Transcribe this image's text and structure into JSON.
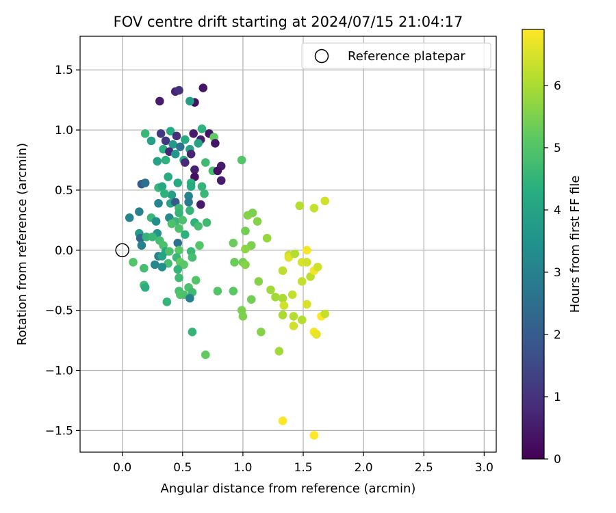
{
  "chart_data": {
    "type": "scatter",
    "title": "FOV centre drift starting at 2024/07/15 21:04:17",
    "xlabel": "Angular distance from reference (arcmin)",
    "ylabel": "Rotation from reference (arcmin)",
    "xlim": [
      -0.35,
      3.1
    ],
    "ylim": [
      -1.68,
      1.78
    ],
    "xticks": [
      0.0,
      0.5,
      1.0,
      1.5,
      2.0,
      2.5,
      3.0
    ],
    "xtick_labels": [
      "0.0",
      "0.5",
      "1.0",
      "1.5",
      "2.0",
      "2.5",
      "3.0"
    ],
    "yticks": [
      1.5,
      1.0,
      0.5,
      0.0,
      -0.5,
      -1.0,
      -1.5
    ],
    "ytick_labels": [
      "1.5",
      "1.0",
      "0.5",
      "0.0",
      "−0.5",
      "−1.0",
      "−1.5"
    ],
    "grid": true,
    "legend": {
      "placement": "upper right",
      "entries": [
        "Reference platepar"
      ]
    },
    "reference_point": {
      "x": 0.0,
      "y": 0.0,
      "name": "Reference platepar",
      "marker": "open circle"
    },
    "colorbar": {
      "label": "Hours from first FF file",
      "colormap": "viridis",
      "range": [
        0,
        6.9
      ],
      "ticks": [
        0,
        1,
        2,
        3,
        4,
        5,
        6
      ],
      "tick_labels": [
        "0",
        "1",
        "2",
        "3",
        "4",
        "5",
        "6"
      ]
    },
    "points": [
      {
        "x": 0.44,
        "y": 1.32,
        "h": 0.7
      },
      {
        "x": 0.47,
        "y": 1.33,
        "h": 0.9
      },
      {
        "x": 0.67,
        "y": 1.35,
        "h": 0.4
      },
      {
        "x": 0.31,
        "y": 1.24,
        "h": 0.5
      },
      {
        "x": 0.6,
        "y": 1.23,
        "h": 0.3
      },
      {
        "x": 0.56,
        "y": 1.24,
        "h": 3.8
      },
      {
        "x": 0.66,
        "y": 1.01,
        "h": 4.4
      },
      {
        "x": 0.19,
        "y": 0.97,
        "h": 4.6
      },
      {
        "x": 0.32,
        "y": 0.97,
        "h": 1.2
      },
      {
        "x": 0.4,
        "y": 0.99,
        "h": 4.2
      },
      {
        "x": 0.45,
        "y": 0.95,
        "h": 0.9
      },
      {
        "x": 0.59,
        "y": 0.97,
        "h": 0.5
      },
      {
        "x": 0.72,
        "y": 0.97,
        "h": 0.4
      },
      {
        "x": 0.76,
        "y": 0.94,
        "h": 5.2
      },
      {
        "x": 0.24,
        "y": 0.91,
        "h": 3.9
      },
      {
        "x": 0.36,
        "y": 0.91,
        "h": 1.1
      },
      {
        "x": 0.52,
        "y": 0.92,
        "h": 4.2
      },
      {
        "x": 0.65,
        "y": 0.92,
        "h": 0.6
      },
      {
        "x": 0.77,
        "y": 0.89,
        "h": 0.4
      },
      {
        "x": 0.63,
        "y": 0.89,
        "h": 4.0
      },
      {
        "x": 0.42,
        "y": 0.88,
        "h": 3.7
      },
      {
        "x": 0.48,
        "y": 0.86,
        "h": 2.6
      },
      {
        "x": 0.56,
        "y": 0.84,
        "h": 4.0
      },
      {
        "x": 0.34,
        "y": 0.84,
        "h": 4.3
      },
      {
        "x": 0.39,
        "y": 0.82,
        "h": 0.7
      },
      {
        "x": 0.44,
        "y": 0.8,
        "h": 3.6
      },
      {
        "x": 0.57,
        "y": 0.8,
        "h": 0.7
      },
      {
        "x": 0.29,
        "y": 0.74,
        "h": 4.0
      },
      {
        "x": 0.36,
        "y": 0.75,
        "h": 4.4
      },
      {
        "x": 0.51,
        "y": 0.75,
        "h": 4.3
      },
      {
        "x": 0.52,
        "y": 0.73,
        "h": 0.8
      },
      {
        "x": 0.69,
        "y": 0.73,
        "h": 4.7
      },
      {
        "x": 0.99,
        "y": 0.75,
        "h": 5.0
      },
      {
        "x": 0.82,
        "y": 0.7,
        "h": 0.5
      },
      {
        "x": 0.6,
        "y": 0.67,
        "h": 0.6
      },
      {
        "x": 0.75,
        "y": 0.66,
        "h": 4.8
      },
      {
        "x": 0.79,
        "y": 0.66,
        "h": 0.3
      },
      {
        "x": 0.38,
        "y": 0.61,
        "h": 4.2
      },
      {
        "x": 0.6,
        "y": 0.61,
        "h": 0.3
      },
      {
        "x": 0.82,
        "y": 0.58,
        "h": 0.5
      },
      {
        "x": 0.16,
        "y": 0.55,
        "h": 2.0
      },
      {
        "x": 0.19,
        "y": 0.56,
        "h": 2.5
      },
      {
        "x": 0.46,
        "y": 0.56,
        "h": 4.2
      },
      {
        "x": 0.57,
        "y": 0.56,
        "h": 4.4
      },
      {
        "x": 0.3,
        "y": 0.52,
        "h": 4.6
      },
      {
        "x": 0.33,
        "y": 0.53,
        "h": 4.1
      },
      {
        "x": 0.57,
        "y": 0.53,
        "h": 4.2
      },
      {
        "x": 0.66,
        "y": 0.53,
        "h": 4.5
      },
      {
        "x": 0.41,
        "y": 0.46,
        "h": 3.9
      },
      {
        "x": 0.55,
        "y": 0.45,
        "h": 3.0
      },
      {
        "x": 0.35,
        "y": 0.47,
        "h": 4.4
      },
      {
        "x": 0.68,
        "y": 0.47,
        "h": 4.6
      },
      {
        "x": 0.3,
        "y": 0.39,
        "h": 3.1
      },
      {
        "x": 0.4,
        "y": 0.39,
        "h": 4.0
      },
      {
        "x": 0.44,
        "y": 0.4,
        "h": 2.0
      },
      {
        "x": 0.55,
        "y": 0.4,
        "h": 2.8
      },
      {
        "x": 0.65,
        "y": 0.38,
        "h": 0.5
      },
      {
        "x": 0.14,
        "y": 0.32,
        "h": 3.0
      },
      {
        "x": 0.47,
        "y": 0.35,
        "h": 4.7
      },
      {
        "x": 0.56,
        "y": 0.33,
        "h": 4.5
      },
      {
        "x": 0.47,
        "y": 0.31,
        "h": 4.5
      },
      {
        "x": 0.06,
        "y": 0.27,
        "h": 3.1
      },
      {
        "x": 0.24,
        "y": 0.27,
        "h": 4.6
      },
      {
        "x": 0.39,
        "y": 0.27,
        "h": 3.2
      },
      {
        "x": 0.44,
        "y": 0.24,
        "h": 4.6
      },
      {
        "x": 0.5,
        "y": 0.25,
        "h": 4.9
      },
      {
        "x": 0.28,
        "y": 0.24,
        "h": 3.4
      },
      {
        "x": 0.41,
        "y": 0.22,
        "h": 4.9
      },
      {
        "x": 0.6,
        "y": 0.23,
        "h": 4.4
      },
      {
        "x": 0.7,
        "y": 0.23,
        "h": 4.7
      },
      {
        "x": 0.63,
        "y": 0.2,
        "h": 4.8
      },
      {
        "x": 0.47,
        "y": 0.18,
        "h": 4.9
      },
      {
        "x": 0.14,
        "y": 0.14,
        "h": 3.8
      },
      {
        "x": 0.29,
        "y": 0.14,
        "h": 3.6
      },
      {
        "x": 0.52,
        "y": 0.13,
        "h": 4.4
      },
      {
        "x": 0.15,
        "y": 0.1,
        "h": 2.3
      },
      {
        "x": 0.2,
        "y": 0.11,
        "h": 4.5
      },
      {
        "x": 0.25,
        "y": 0.11,
        "h": 4.6
      },
      {
        "x": 0.31,
        "y": 0.08,
        "h": 4.8
      },
      {
        "x": 0.34,
        "y": 0.04,
        "h": 4.9
      },
      {
        "x": 0.46,
        "y": 0.06,
        "h": 2.6
      },
      {
        "x": 0.16,
        "y": 0.04,
        "h": 3.0
      },
      {
        "x": 0.64,
        "y": 0.04,
        "h": 5.0
      },
      {
        "x": 0.36,
        "y": -0.01,
        "h": 4.2
      },
      {
        "x": 0.39,
        "y": -0.01,
        "h": 4.9
      },
      {
        "x": 0.47,
        "y": 0.0,
        "h": 5.1
      },
      {
        "x": 0.57,
        "y": -0.01,
        "h": 4.6
      },
      {
        "x": 0.3,
        "y": -0.05,
        "h": 3.0
      },
      {
        "x": 0.33,
        "y": -0.05,
        "h": 4.0
      },
      {
        "x": 0.45,
        "y": -0.06,
        "h": 4.6
      },
      {
        "x": 0.58,
        "y": -0.06,
        "h": 4.8
      },
      {
        "x": 0.09,
        "y": -0.1,
        "h": 5.0
      },
      {
        "x": 0.48,
        "y": -0.1,
        "h": 5.2
      },
      {
        "x": 0.51,
        "y": -0.12,
        "h": 5.1
      },
      {
        "x": 0.27,
        "y": -0.12,
        "h": 3.2
      },
      {
        "x": 0.38,
        "y": -0.11,
        "h": 4.8
      },
      {
        "x": 0.33,
        "y": -0.14,
        "h": 3.4
      },
      {
        "x": 0.18,
        "y": -0.15,
        "h": 4.8
      },
      {
        "x": 0.46,
        "y": -0.16,
        "h": 4.5
      },
      {
        "x": 0.47,
        "y": -0.23,
        "h": 4.7
      },
      {
        "x": 0.61,
        "y": -0.25,
        "h": 5.0
      },
      {
        "x": 0.18,
        "y": -0.29,
        "h": 4.8
      },
      {
        "x": 0.19,
        "y": -0.31,
        "h": 4.3
      },
      {
        "x": 0.55,
        "y": -0.31,
        "h": 4.9
      },
      {
        "x": 0.47,
        "y": -0.34,
        "h": 4.8
      },
      {
        "x": 0.58,
        "y": -0.35,
        "h": 4.7
      },
      {
        "x": 0.48,
        "y": -0.37,
        "h": 5.0
      },
      {
        "x": 0.51,
        "y": -0.37,
        "h": 4.9
      },
      {
        "x": 0.56,
        "y": -0.4,
        "h": 3.0
      },
      {
        "x": 0.37,
        "y": -0.43,
        "h": 4.5
      },
      {
        "x": 0.79,
        "y": -0.34,
        "h": 5.0
      },
      {
        "x": 0.92,
        "y": -0.34,
        "h": 5.1
      },
      {
        "x": 0.58,
        "y": -0.68,
        "h": 4.5
      },
      {
        "x": 0.69,
        "y": -0.87,
        "h": 5.2
      },
      {
        "x": 0.92,
        "y": 0.06,
        "h": 5.3
      },
      {
        "x": 1.02,
        "y": 0.16,
        "h": 5.4
      },
      {
        "x": 1.04,
        "y": 0.29,
        "h": 5.6
      },
      {
        "x": 1.08,
        "y": 0.31,
        "h": 5.5
      },
      {
        "x": 1.12,
        "y": 0.24,
        "h": 5.6
      },
      {
        "x": 1.07,
        "y": 0.04,
        "h": 5.5
      },
      {
        "x": 1.02,
        "y": 0.01,
        "h": 5.7
      },
      {
        "x": 1.2,
        "y": 0.1,
        "h": 5.8
      },
      {
        "x": 0.93,
        "y": -0.1,
        "h": 5.3
      },
      {
        "x": 1.0,
        "y": -0.1,
        "h": 5.4
      },
      {
        "x": 1.02,
        "y": -0.12,
        "h": 5.6
      },
      {
        "x": 1.13,
        "y": -0.26,
        "h": 5.6
      },
      {
        "x": 1.23,
        "y": -0.33,
        "h": 5.9
      },
      {
        "x": 1.07,
        "y": -0.41,
        "h": 5.4
      },
      {
        "x": 0.99,
        "y": -0.5,
        "h": 5.5
      },
      {
        "x": 1.0,
        "y": -0.55,
        "h": 5.5
      },
      {
        "x": 1.27,
        "y": -0.39,
        "h": 5.9
      },
      {
        "x": 1.33,
        "y": -0.4,
        "h": 6.0
      },
      {
        "x": 1.34,
        "y": -0.46,
        "h": 6.4
      },
      {
        "x": 1.41,
        "y": -0.37,
        "h": 6.3
      },
      {
        "x": 1.33,
        "y": -0.54,
        "h": 6.0
      },
      {
        "x": 1.42,
        "y": -0.55,
        "h": 6.1
      },
      {
        "x": 1.42,
        "y": -0.63,
        "h": 6.4
      },
      {
        "x": 1.49,
        "y": -0.58,
        "h": 6.1
      },
      {
        "x": 1.53,
        "y": -0.45,
        "h": 6.5
      },
      {
        "x": 1.15,
        "y": -0.68,
        "h": 5.6
      },
      {
        "x": 1.3,
        "y": -0.84,
        "h": 5.9
      },
      {
        "x": 1.33,
        "y": -0.17,
        "h": 6.2
      },
      {
        "x": 1.38,
        "y": -0.04,
        "h": 6.3
      },
      {
        "x": 1.38,
        "y": -0.06,
        "h": 6.6
      },
      {
        "x": 1.43,
        "y": -0.03,
        "h": 6.1
      },
      {
        "x": 1.49,
        "y": -0.1,
        "h": 6.5
      },
      {
        "x": 1.53,
        "y": 0.0,
        "h": 6.8
      },
      {
        "x": 1.53,
        "y": -0.1,
        "h": 6.4
      },
      {
        "x": 1.56,
        "y": -0.22,
        "h": 6.2
      },
      {
        "x": 1.59,
        "y": -0.17,
        "h": 6.8
      },
      {
        "x": 1.62,
        "y": -0.14,
        "h": 6.4
      },
      {
        "x": 1.49,
        "y": -0.26,
        "h": 6.3
      },
      {
        "x": 1.59,
        "y": -0.68,
        "h": 6.8
      },
      {
        "x": 1.61,
        "y": -0.7,
        "h": 6.7
      },
      {
        "x": 1.65,
        "y": -0.55,
        "h": 6.9
      },
      {
        "x": 1.68,
        "y": -0.53,
        "h": 6.3
      },
      {
        "x": 1.47,
        "y": 0.37,
        "h": 6.1
      },
      {
        "x": 1.59,
        "y": 0.35,
        "h": 6.3
      },
      {
        "x": 1.68,
        "y": 0.41,
        "h": 6.4
      },
      {
        "x": 1.33,
        "y": -1.42,
        "h": 6.9
      },
      {
        "x": 1.59,
        "y": -1.54,
        "h": 6.9
      }
    ]
  }
}
